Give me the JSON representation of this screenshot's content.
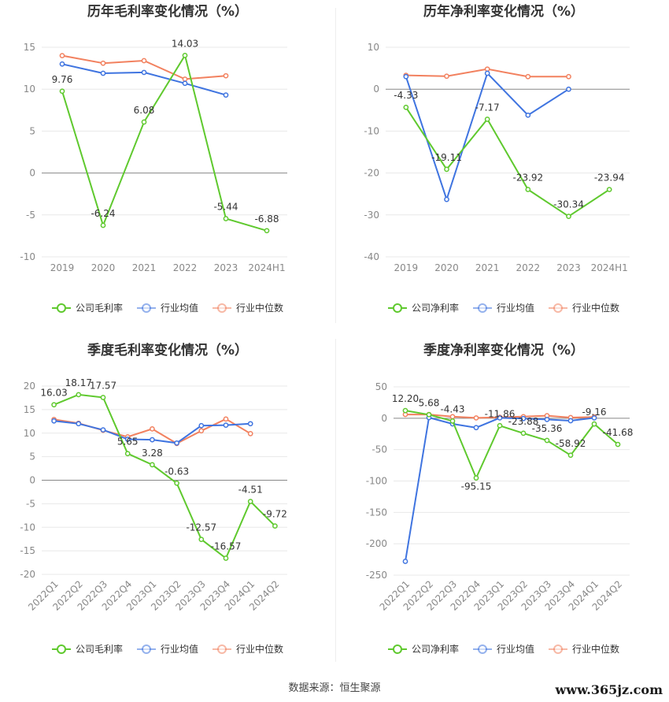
{
  "colors": {
    "company": "#5fc92e",
    "industry_avg": "#3f74e0",
    "industry_median": "#f2815f"
  },
  "legend_labels": {
    "gross": [
      "公司毛利率",
      "行业均值",
      "行业中位数"
    ],
    "net": [
      "公司净利率",
      "行业均值",
      "行业中位数"
    ]
  },
  "footer": {
    "source": "数据来源：恒生聚源",
    "watermark": "www.365jz.com"
  },
  "chart_data": [
    {
      "type": "line",
      "title": "历年毛利率变化情况（%）",
      "categories": [
        "2019",
        "2020",
        "2021",
        "2022",
        "2023",
        "2024H1"
      ],
      "ylim": [
        -10,
        15
      ],
      "yticks": [
        15,
        10,
        5,
        0,
        -5,
        -10
      ],
      "grid": true,
      "legend": "bottom",
      "series": [
        {
          "name": "公司毛利率",
          "values": [
            9.76,
            -6.24,
            6.08,
            14.03,
            -5.44,
            -6.88
          ],
          "labeled": true
        },
        {
          "name": "行业均值",
          "values": [
            13.0,
            11.9,
            12.0,
            10.7,
            9.3,
            null
          ]
        },
        {
          "name": "行业中位数",
          "values": [
            14.0,
            13.1,
            13.4,
            11.2,
            11.6,
            null
          ]
        }
      ]
    },
    {
      "type": "line",
      "title": "历年净利率变化情况（%）",
      "categories": [
        "2019",
        "2020",
        "2021",
        "2022",
        "2023",
        "2024H1"
      ],
      "ylim": [
        -40,
        10
      ],
      "yticks": [
        10,
        0,
        -10,
        -20,
        -30,
        -40
      ],
      "grid": true,
      "legend": "bottom",
      "series": [
        {
          "name": "公司净利率",
          "values": [
            -4.33,
            -19.11,
            -7.17,
            -23.92,
            -30.34,
            -23.94
          ],
          "labeled": true
        },
        {
          "name": "行业均值",
          "values": [
            3.0,
            -26.3,
            3.8,
            -6.2,
            0.0,
            null
          ]
        },
        {
          "name": "行业中位数",
          "values": [
            3.3,
            3.1,
            4.8,
            3.0,
            3.0,
            null
          ]
        }
      ]
    },
    {
      "type": "line",
      "title": "季度毛利率变化情况（%）",
      "categories": [
        "2022Q1",
        "2022Q2",
        "2022Q3",
        "2022Q4",
        "2023Q1",
        "2023Q2",
        "2023Q3",
        "2023Q4",
        "2024Q1",
        "2024Q2"
      ],
      "ylim": [
        -20,
        20
      ],
      "yticks": [
        20,
        15,
        10,
        5,
        0,
        -5,
        -10,
        -15,
        -20
      ],
      "grid": true,
      "legend": "bottom",
      "series": [
        {
          "name": "公司毛利率",
          "values": [
            16.03,
            18.17,
            17.57,
            5.65,
            3.28,
            -0.63,
            -12.57,
            -16.57,
            -4.51,
            -9.72
          ],
          "labeled": true
        },
        {
          "name": "行业均值",
          "values": [
            12.6,
            12.0,
            10.7,
            8.7,
            8.6,
            7.9,
            11.6,
            11.7,
            12.0,
            null
          ]
        },
        {
          "name": "行业中位数",
          "values": [
            12.9,
            12.1,
            10.6,
            9.2,
            10.9,
            7.8,
            10.5,
            13.0,
            9.9,
            null
          ]
        }
      ]
    },
    {
      "type": "line",
      "title": "季度净利率变化情况（%）",
      "categories": [
        "2022Q1",
        "2022Q2",
        "2022Q3",
        "2022Q4",
        "2023Q1",
        "2023Q2",
        "2023Q3",
        "2023Q4",
        "2024Q1",
        "2024Q2"
      ],
      "ylim": [
        -250,
        50
      ],
      "yticks": [
        50,
        0,
        -50,
        -100,
        -150,
        -200,
        -250
      ],
      "grid": true,
      "legend": "bottom",
      "series": [
        {
          "name": "公司净利率",
          "values": [
            12.2,
            5.68,
            -4.43,
            -95.15,
            -11.86,
            -23.88,
            -35.36,
            -58.92,
            -9.16,
            -41.68
          ],
          "labeled": true
        },
        {
          "name": "行业均值",
          "values": [
            -228.0,
            1.0,
            -9.0,
            -15.0,
            0.5,
            -0.5,
            -2.0,
            -4.0,
            0.5,
            null
          ]
        },
        {
          "name": "行业中位数",
          "values": [
            6.0,
            6.0,
            2.5,
            0.5,
            1.5,
            2.5,
            4.0,
            1.0,
            2.0,
            null
          ]
        }
      ]
    }
  ]
}
